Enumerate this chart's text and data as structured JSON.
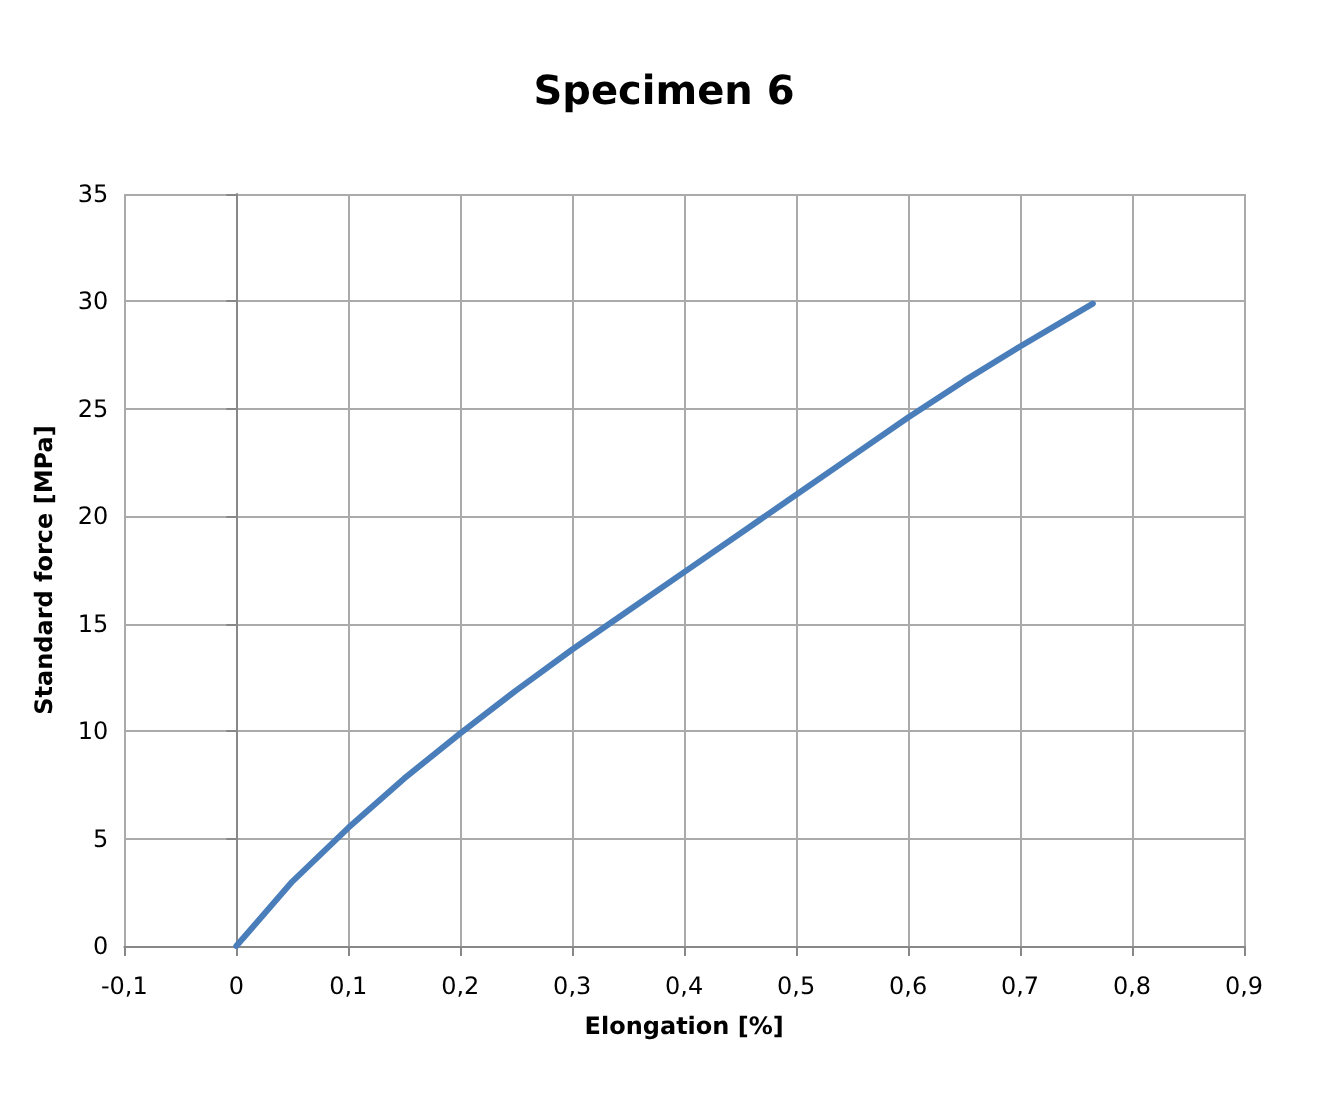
{
  "chart_data": {
    "type": "line",
    "title": "Specimen 6",
    "xlabel": "Elongation [%]",
    "ylabel": "Standard force [MPa]",
    "x": [
      0,
      0.02,
      0.05,
      0.1,
      0.15,
      0.2,
      0.25,
      0.3,
      0.35,
      0.4,
      0.45,
      0.5,
      0.55,
      0.6,
      0.65,
      0.7,
      0.765
    ],
    "series": [
      {
        "color": "#4a7ebb",
        "values": [
          0,
          1.2,
          3,
          5.5,
          7.8,
          9.9,
          11.9,
          13.8,
          15.6,
          17.4,
          19.2,
          21,
          22.8,
          24.6,
          26.3,
          27.9,
          29.9
        ]
      }
    ],
    "xlim": [
      -0.1,
      0.9
    ],
    "xticks": [
      {
        "value": -0.1,
        "label": "-0,1"
      },
      {
        "value": 0,
        "label": "0"
      },
      {
        "value": 0.1,
        "label": "0,1"
      },
      {
        "value": 0.2,
        "label": "0,2"
      },
      {
        "value": 0.3,
        "label": "0,3"
      },
      {
        "value": 0.4,
        "label": "0,4"
      },
      {
        "value": 0.5,
        "label": "0,5"
      },
      {
        "value": 0.6,
        "label": "0,6"
      },
      {
        "value": 0.7,
        "label": "0,7"
      },
      {
        "value": 0.8,
        "label": "0,8"
      },
      {
        "value": 0.9,
        "label": "0,9"
      }
    ],
    "ylim": [
      0,
      35
    ],
    "yticks": [
      0,
      5,
      10,
      15,
      20,
      25,
      30,
      35
    ],
    "grid": true,
    "marker": "none",
    "line_style": "solid"
  }
}
